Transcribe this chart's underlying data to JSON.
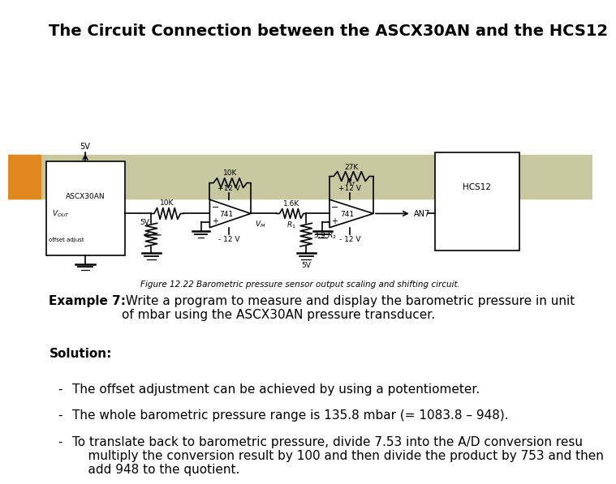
{
  "title": "The Circuit Connection between the ASCX30AN and the HCS12",
  "title_fontsize": 14,
  "bg_color": "#ffffff",
  "header_bar_color": "#c8c8a0",
  "header_bar_left_accent": "#e08820",
  "example_label": "Example 7:",
  "example_text": " Write a program to measure and display the barometric pressure in unit\nof mbar using the ASCX30AN pressure transducer.",
  "solution_label": "Solution:",
  "bullets": [
    "The offset adjustment can be achieved by using a potentiometer.",
    "The whole barometric pressure range is 135.8 mbar (= 1083.8 – 948).",
    "To translate back to barometric pressure, divide 7.53 into the A/D conversion resu\n    multiply the conversion result by 100 and then divide the product by 753 and then\n    add 948 to the quotient."
  ],
  "figure_caption": "Figure 12.22 Barometric pressure sensor output scaling and shifting circuit."
}
